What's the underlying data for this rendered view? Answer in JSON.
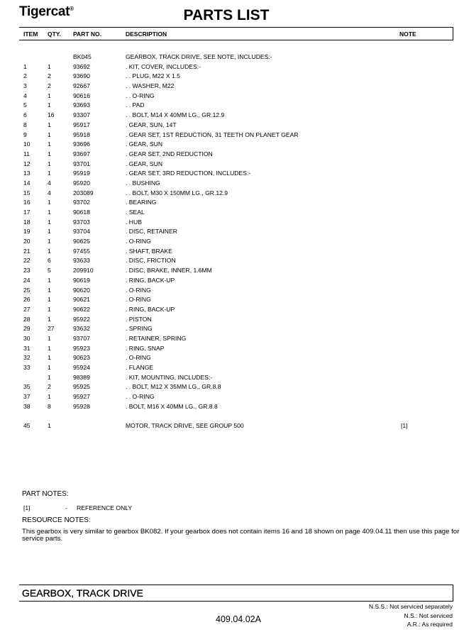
{
  "header": {
    "brand": "Tigercat",
    "brand_mark": "®",
    "title": "PARTS LIST"
  },
  "columns": {
    "item": "ITEM",
    "qty": "QTY.",
    "part": "PART NO.",
    "description": "DESCRIPTION",
    "note": "NOTE"
  },
  "rows": [
    {
      "item": "",
      "qty": "",
      "part": "BK045",
      "description": "GEARBOX, TRACK DRIVE, SEE NOTE, INCLUDES:-",
      "note": ""
    },
    {
      "item": "1",
      "qty": "1",
      "part": "93692",
      "description": ". KIT, COVER, INCLUDES:-",
      "note": ""
    },
    {
      "item": "2",
      "qty": "2",
      "part": "93690",
      "description": ". . PLUG, M22 X 1.5",
      "note": ""
    },
    {
      "item": "3",
      "qty": "2",
      "part": "92667",
      "description": ". . WASHER, M22",
      "note": ""
    },
    {
      "item": "4",
      "qty": "1",
      "part": "90616",
      "description": ". . O-RING",
      "note": ""
    },
    {
      "item": "5",
      "qty": "1",
      "part": "93693",
      "description": ". . PAD",
      "note": ""
    },
    {
      "item": "6",
      "qty": "16",
      "part": "93307",
      "description": ". . BOLT, M14 X 40MM LG., GR.12.9",
      "note": ""
    },
    {
      "item": "8",
      "qty": "1",
      "part": "95917",
      "description": ". GEAR, SUN, 14T",
      "note": ""
    },
    {
      "item": "9",
      "qty": "1",
      "part": "95918",
      "description": ". GEAR SET, 1ST REDUCTION, 31 TEETH ON PLANET GEAR",
      "note": ""
    },
    {
      "item": "10",
      "qty": "1",
      "part": "93696",
      "description": ". GEAR, SUN",
      "note": ""
    },
    {
      "item": "11",
      "qty": "1",
      "part": "93697",
      "description": ". GEAR SET, 2ND REDUCTION",
      "note": ""
    },
    {
      "item": "12",
      "qty": "1",
      "part": "93701",
      "description": ". GEAR, SUN",
      "note": ""
    },
    {
      "item": "13",
      "qty": "1",
      "part": "95919",
      "description": ". GEAR SET, 3RD REDUCTION, INCLUDES:-",
      "note": ""
    },
    {
      "item": "14",
      "qty": "4",
      "part": "95920",
      "description": ". . BUSHING",
      "note": ""
    },
    {
      "item": "15",
      "qty": "4",
      "part": "203089",
      "description": ". . BOLT, M30 X 150MM LG., GR.12.9",
      "note": ""
    },
    {
      "item": "16",
      "qty": "1",
      "part": "93702",
      "description": ". BEARING",
      "note": ""
    },
    {
      "item": "17",
      "qty": "1",
      "part": "90618",
      "description": ". SEAL",
      "note": ""
    },
    {
      "item": "18",
      "qty": "1",
      "part": "93703",
      "description": ". HUB",
      "note": ""
    },
    {
      "item": "19",
      "qty": "1",
      "part": "93704",
      "description": ". DISC, RETAINER",
      "note": ""
    },
    {
      "item": "20",
      "qty": "1",
      "part": "90625",
      "description": ". O-RING",
      "note": ""
    },
    {
      "item": "21",
      "qty": "1",
      "part": "97455",
      "description": ". SHAFT, BRAKE",
      "note": ""
    },
    {
      "item": "22",
      "qty": "6",
      "part": "93633",
      "description": ". DISC, FRICTION",
      "note": ""
    },
    {
      "item": "23",
      "qty": "5",
      "part": "209910",
      "description": ". DISC, BRAKE, INNER, 1.6MM",
      "note": ""
    },
    {
      "item": "24",
      "qty": "1",
      "part": "90619",
      "description": ". RING, BACK-UP",
      "note": ""
    },
    {
      "item": "25",
      "qty": "1",
      "part": "90620",
      "description": ". O-RING",
      "note": ""
    },
    {
      "item": "26",
      "qty": "1",
      "part": "90621",
      "description": ". O-RING",
      "note": ""
    },
    {
      "item": "27",
      "qty": "1",
      "part": "90622",
      "description": ". RING, BACK-UP",
      "note": ""
    },
    {
      "item": "28",
      "qty": "1",
      "part": "95922",
      "description": ". PISTON",
      "note": ""
    },
    {
      "item": "29",
      "qty": "27",
      "part": "93632",
      "description": ". SPRING",
      "note": ""
    },
    {
      "item": "30",
      "qty": "1",
      "part": "93707",
      "description": ". RETAINER, SPRING",
      "note": ""
    },
    {
      "item": "31",
      "qty": "1",
      "part": "95923",
      "description": ". RING, SNAP",
      "note": ""
    },
    {
      "item": "32",
      "qty": "1",
      "part": "90623",
      "description": ". O-RING",
      "note": ""
    },
    {
      "item": "33",
      "qty": "1",
      "part": "95924",
      "description": ". FLANGE",
      "note": ""
    },
    {
      "item": "",
      "qty": "1",
      "part": "98389",
      "description": ". KIT, MOUNTING, INCLUDES:-",
      "note": ""
    },
    {
      "item": "35",
      "qty": "2",
      "part": "95925",
      "description": ". . BOLT, M12 X 35MM LG., GR.8.8",
      "note": ""
    },
    {
      "item": "37",
      "qty": "1",
      "part": "95927",
      "description": ". . O-RING",
      "note": ""
    },
    {
      "item": "38",
      "qty": "8",
      "part": "95928",
      "description": ". BOLT, M16 X 40MM LG., GR.8.8",
      "note": ""
    },
    null,
    {
      "item": "45",
      "qty": "1",
      "part": "",
      "description": "MOTOR, TRACK DRIVE, SEE GROUP 500",
      "note": "[1]"
    }
  ],
  "part_notes": {
    "label": "PART NOTES:",
    "key": "[1]",
    "dash": "-",
    "text": "REFERENCE ONLY"
  },
  "resource_notes": {
    "label": "RESOURCE NOTES:",
    "text": "This gearbox is very similar to gearbox BK082. If your gearbox does not contain items 16 and 18 shown on page 409.04.11 then use this page for service parts."
  },
  "footer": {
    "title": "GEARBOX, TRACK DRIVE",
    "page_number": "409.04.02A",
    "legend": [
      "N.S.S.: Not serviced separately",
      "N.S.: Not serviced",
      "A.R.: As required"
    ]
  }
}
